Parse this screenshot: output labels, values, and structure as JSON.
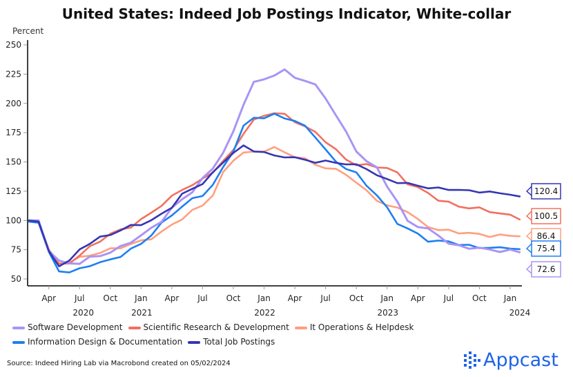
{
  "chart_data": {
    "type": "line",
    "title": "United States: Indeed Job Postings Indicator, White-collar",
    "ylabel": "Percent",
    "ylim": [
      50,
      250
    ],
    "yticks": [
      50,
      75,
      100,
      125,
      150,
      175,
      200,
      225,
      250
    ],
    "x": [
      "2020-02",
      "2020-03",
      "2020-04",
      "2020-05",
      "2020-06",
      "2020-07",
      "2020-08",
      "2020-09",
      "2020-10",
      "2020-11",
      "2020-12",
      "2021-01",
      "2021-02",
      "2021-03",
      "2021-04",
      "2021-05",
      "2021-06",
      "2021-07",
      "2021-08",
      "2021-09",
      "2021-10",
      "2021-11",
      "2021-12",
      "2022-01",
      "2022-02",
      "2022-03",
      "2022-04",
      "2022-05",
      "2022-06",
      "2022-07",
      "2022-08",
      "2022-09",
      "2022-10",
      "2022-11",
      "2022-12",
      "2023-01",
      "2023-02",
      "2023-03",
      "2023-04",
      "2023-05",
      "2023-06",
      "2023-07",
      "2023-08",
      "2023-09",
      "2023-10",
      "2023-11",
      "2023-12",
      "2024-01",
      "2024-02"
    ],
    "xticks": [
      {
        "label": "Apr",
        "year": "2020",
        "m": 2
      },
      {
        "label": "Jul",
        "m": 5
      },
      {
        "label": "Oct",
        "m": 8
      },
      {
        "label": "Jan",
        "year": "2021",
        "m": 11
      },
      {
        "label": "Apr",
        "m": 14
      },
      {
        "label": "Jul",
        "m": 17
      },
      {
        "label": "Oct",
        "m": 20
      },
      {
        "label": "Jan",
        "year": "2022",
        "m": 23
      },
      {
        "label": "Apr",
        "m": 26
      },
      {
        "label": "Jul",
        "m": 29
      },
      {
        "label": "Oct",
        "m": 32
      },
      {
        "label": "Jan",
        "year": "2023",
        "m": 35
      },
      {
        "label": "Apr",
        "m": 38
      },
      {
        "label": "Jul",
        "m": 41
      },
      {
        "label": "Oct",
        "m": 44
      },
      {
        "label": "Jan",
        "year": "2024",
        "m": 47
      }
    ],
    "series": [
      {
        "name": "Software Development",
        "color": "#a994f5",
        "last": "72.6",
        "values": [
          100,
          100,
          75,
          65,
          63,
          64,
          68,
          70,
          73,
          77,
          82,
          87,
          93,
          100,
          110,
          118,
          125,
          135,
          145,
          158,
          175,
          200,
          218,
          220,
          225,
          228,
          222,
          220,
          215,
          205,
          190,
          175,
          160,
          150,
          145,
          130,
          115,
          100,
          95,
          92,
          88,
          80,
          78,
          77,
          76,
          75,
          74,
          74,
          72.6
        ]
      },
      {
        "name": "Scientific Research & Development",
        "color": "#f2705e",
        "last": "100.5",
        "values": [
          100,
          99,
          75,
          62,
          64,
          70,
          77,
          83,
          88,
          92,
          95,
          100,
          107,
          113,
          120,
          127,
          130,
          135,
          142,
          150,
          160,
          175,
          185,
          190,
          192,
          190,
          185,
          180,
          175,
          168,
          160,
          152,
          148,
          147,
          146,
          145,
          140,
          132,
          128,
          123,
          118,
          115,
          112,
          111,
          110,
          108,
          106,
          104,
          100.5
        ]
      },
      {
        "name": "It Operations & Helpdesk",
        "color": "#ff9f7f",
        "last": "86.4",
        "values": [
          100,
          99,
          75,
          62,
          65,
          68,
          70,
          73,
          75,
          77,
          80,
          82,
          85,
          90,
          96,
          102,
          108,
          113,
          122,
          140,
          152,
          158,
          158,
          160,
          162,
          158,
          155,
          152,
          148,
          145,
          143,
          140,
          132,
          125,
          118,
          112,
          111,
          108,
          100,
          95,
          92,
          91,
          90,
          89,
          88,
          87,
          87,
          87,
          86.4
        ]
      },
      {
        "name": "Information Design & Documentation",
        "color": "#1e7ff0",
        "last": "75.4",
        "values": [
          99,
          98,
          72,
          57,
          56,
          58,
          62,
          64,
          66,
          70,
          75,
          80,
          88,
          97,
          105,
          112,
          118,
          122,
          130,
          145,
          160,
          180,
          188,
          188,
          190,
          188,
          185,
          180,
          172,
          160,
          150,
          145,
          140,
          130,
          122,
          110,
          98,
          93,
          88,
          83,
          82,
          82,
          80,
          78,
          77,
          77,
          76,
          77,
          75.4
        ]
      },
      {
        "name": "Total Job Postings",
        "color": "#3535b5",
        "last": "120.4",
        "values": [
          100,
          99,
          73,
          62,
          65,
          75,
          81,
          85,
          88,
          92,
          95,
          97,
          100,
          105,
          112,
          122,
          127,
          132,
          140,
          150,
          158,
          163,
          160,
          158,
          155,
          155,
          153,
          152,
          150,
          150,
          150,
          148,
          147,
          145,
          138,
          135,
          133,
          131,
          130,
          128,
          127,
          127,
          126,
          125,
          125,
          124,
          123,
          123,
          120.4
        ]
      }
    ],
    "grid": false,
    "legend": "bottom"
  },
  "source": "Source: Indeed Hiring Lab via Macrobond created on 05/02/2024",
  "logo": "Appcast"
}
